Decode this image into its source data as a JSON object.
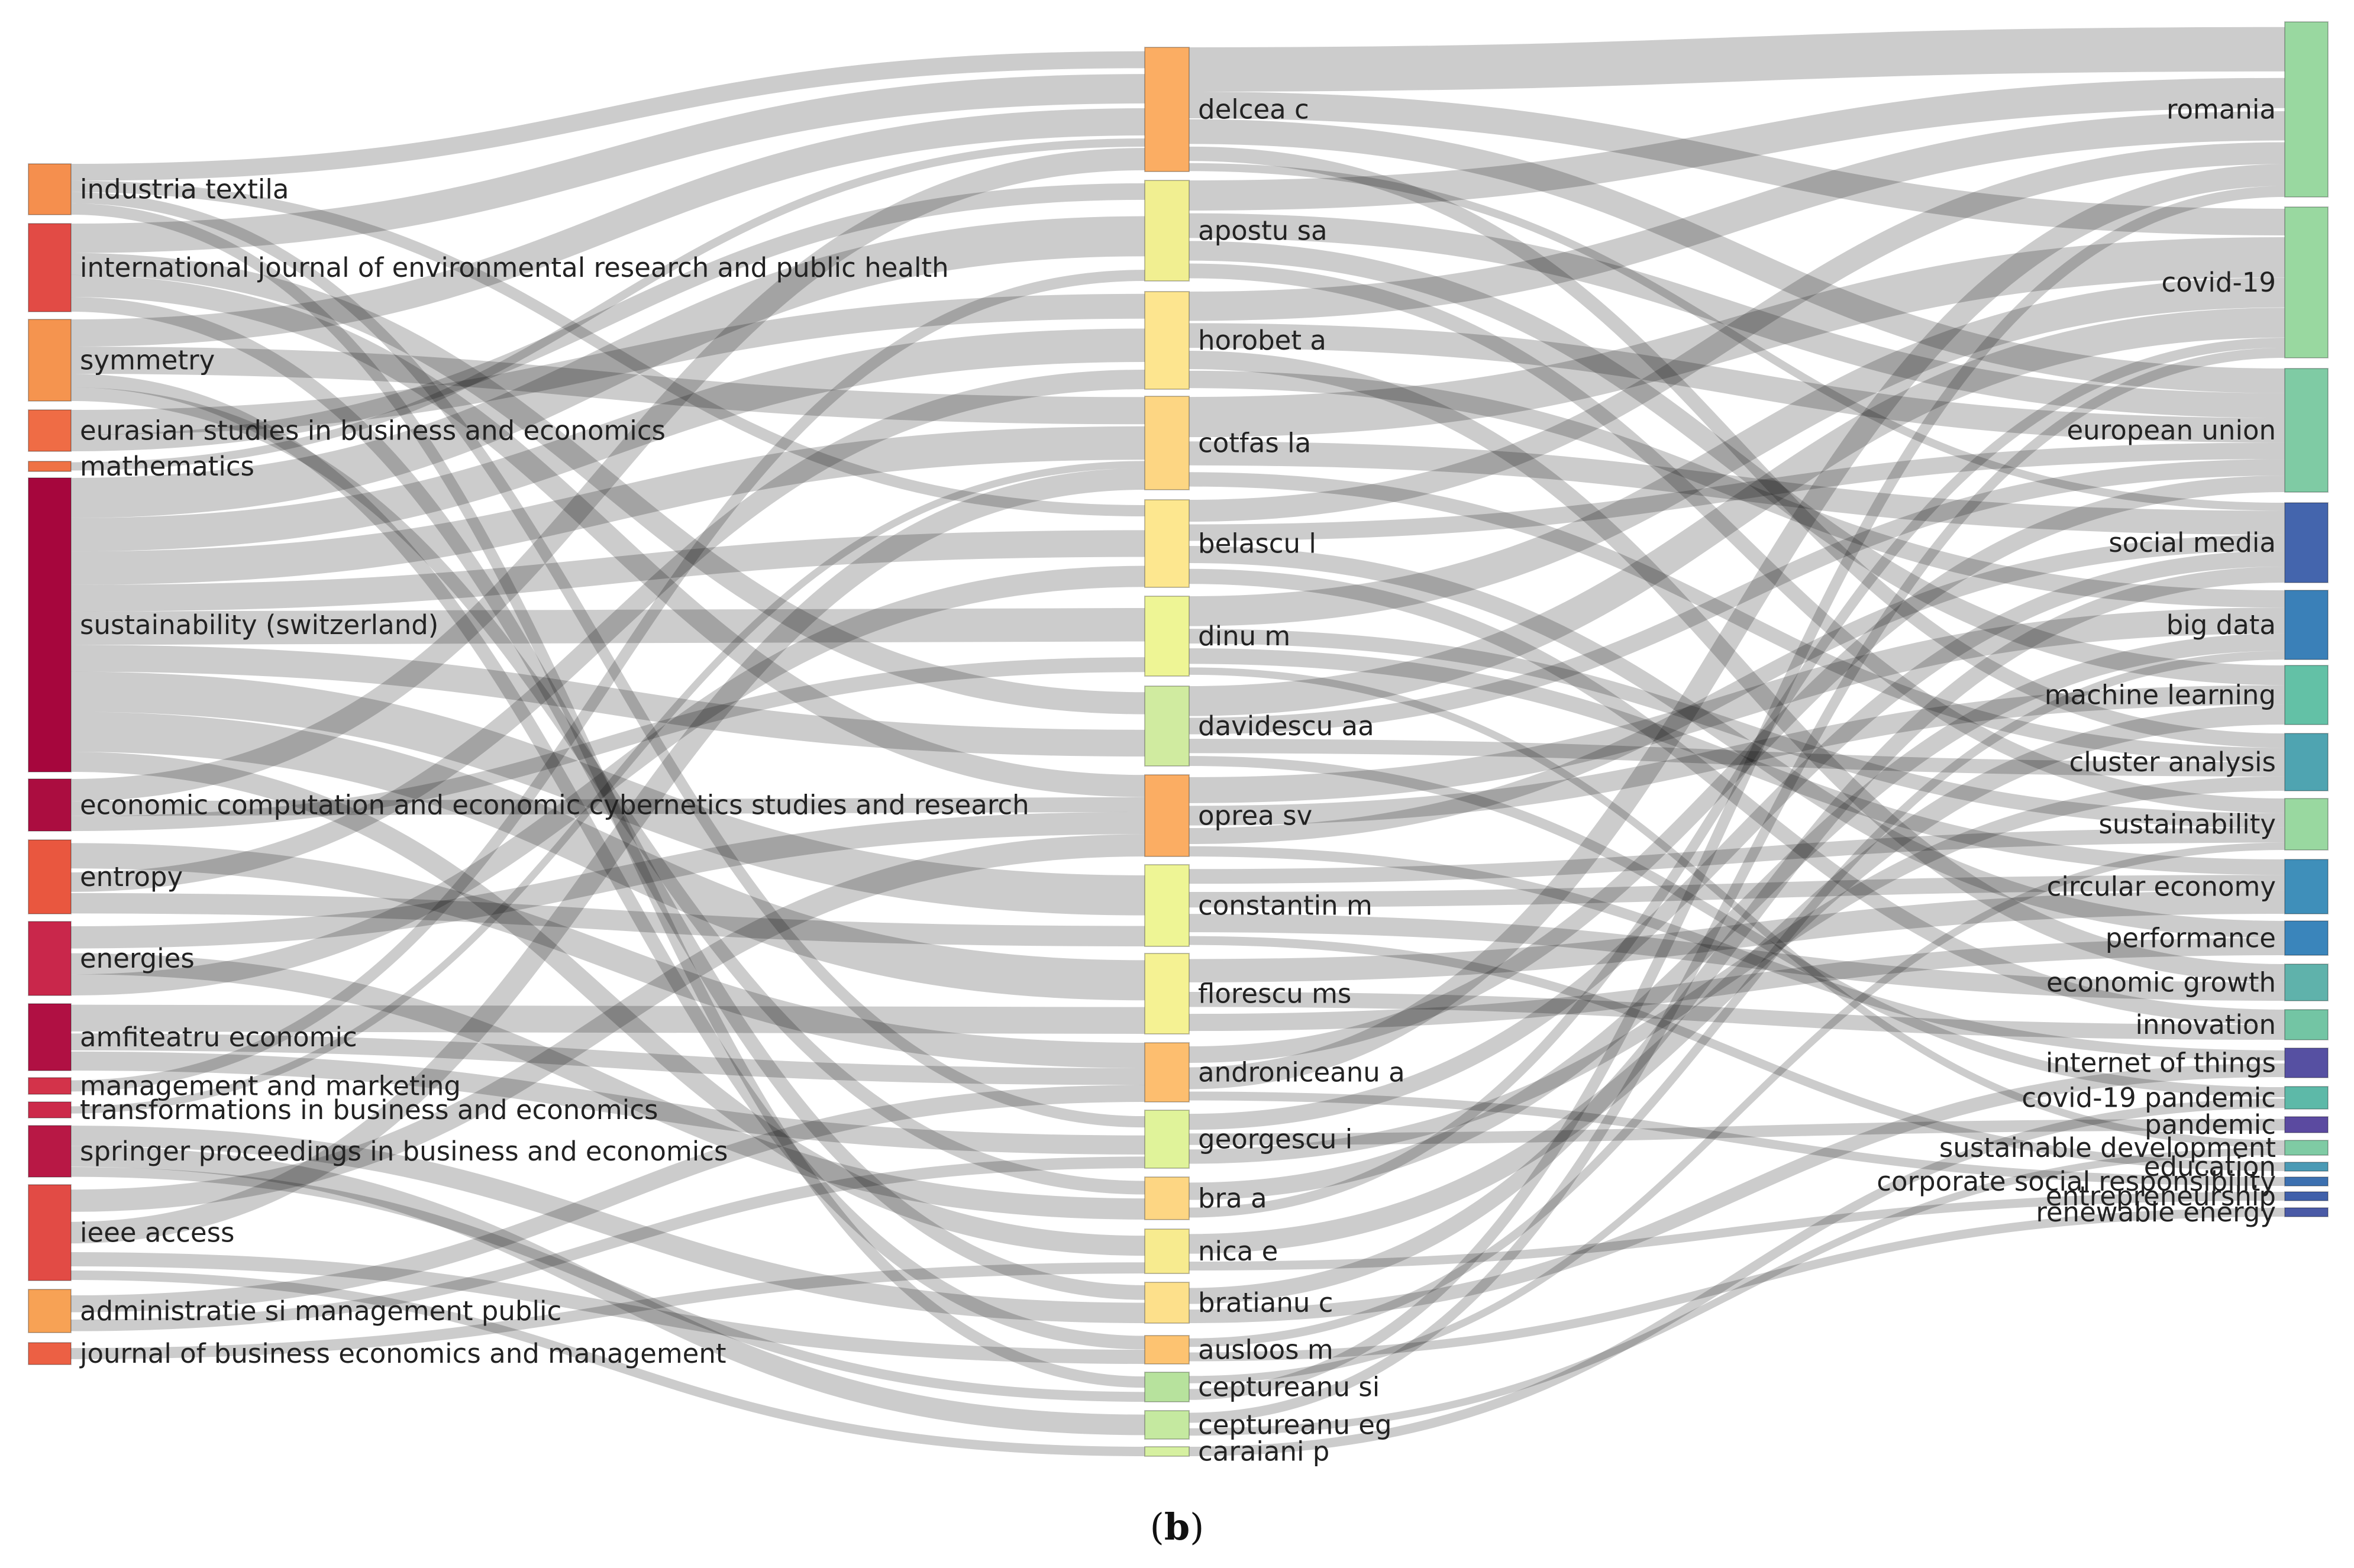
{
  "figure": {
    "panel_letter": "b"
  },
  "columns": {
    "sources": [
      {
        "label": "industria textila",
        "color": "#f58f4e"
      },
      {
        "label": "international journal of environmental research and public health",
        "color": "#e24b45"
      },
      {
        "label": "symmetry",
        "color": "#f5944f"
      },
      {
        "label": "eurasian studies in business and economics",
        "color": "#ef6c45"
      },
      {
        "label": "mathematics",
        "color": "#ef7245"
      },
      {
        "label": "sustainability (switzerland)",
        "color": "#a6063d"
      },
      {
        "label": "economic computation and economic cybernetics studies and research",
        "color": "#ab0d40"
      },
      {
        "label": "entropy",
        "color": "#e9573f"
      },
      {
        "label": "energies",
        "color": "#c9274b"
      },
      {
        "label": "amfiteatru economic",
        "color": "#b01043"
      },
      {
        "label": "management and marketing",
        "color": "#d3334a"
      },
      {
        "label": "transformations in business and economics",
        "color": "#cc2a4a"
      },
      {
        "label": "springer proceedings in business and economics",
        "color": "#b81845"
      },
      {
        "label": "ieee access",
        "color": "#e24b45"
      },
      {
        "label": "administratie si management public",
        "color": "#f7a255"
      },
      {
        "label": "journal of business economics and management",
        "color": "#ec6044"
      }
    ],
    "authors": [
      {
        "label": "delcea c",
        "color": "#fbad63"
      },
      {
        "label": "apostu sa",
        "color": "#f1ef91"
      },
      {
        "label": "horobet a",
        "color": "#fde58f"
      },
      {
        "label": "cotfas la",
        "color": "#fdd683"
      },
      {
        "label": "belascu l",
        "color": "#fde78f"
      },
      {
        "label": "dinu m",
        "color": "#eef595"
      },
      {
        "label": "davidescu aa",
        "color": "#d0eba0"
      },
      {
        "label": "oprea sv",
        "color": "#fbad63"
      },
      {
        "label": "constantin m",
        "color": "#eef595"
      },
      {
        "label": "florescu ms",
        "color": "#f5f293"
      },
      {
        "label": "androniceanu a",
        "color": "#fdbe6f"
      },
      {
        "label": "georgescu i",
        "color": "#e0f39a"
      },
      {
        "label": "bra a",
        "color": "#fdd683"
      },
      {
        "label": "nica e",
        "color": "#f7eb8f"
      },
      {
        "label": "bratianu c",
        "color": "#fde08b"
      },
      {
        "label": "ausloos m",
        "color": "#fdc371"
      },
      {
        "label": "ceptureanu si",
        "color": "#b7e29d"
      },
      {
        "label": "ceptureanu eg",
        "color": "#c5e9a0"
      },
      {
        "label": "caraiani p",
        "color": "#d6f0a0"
      }
    ],
    "keywords": [
      {
        "label": "romania",
        "color": "#99d8a0"
      },
      {
        "label": "covid-19",
        "color": "#99d8a0"
      },
      {
        "label": "european union",
        "color": "#7fcba4"
      },
      {
        "label": "social media",
        "color": "#4465ad"
      },
      {
        "label": "big data",
        "color": "#3a80b8"
      },
      {
        "label": "machine learning",
        "color": "#63c1a6"
      },
      {
        "label": "cluster analysis",
        "color": "#4fa4b1"
      },
      {
        "label": "sustainability",
        "color": "#99d8a0"
      },
      {
        "label": "circular economy",
        "color": "#3f8fba"
      },
      {
        "label": "performance",
        "color": "#3a85bb"
      },
      {
        "label": "economic growth",
        "color": "#5fb2ab"
      },
      {
        "label": "innovation",
        "color": "#73c5a4"
      },
      {
        "label": "internet of things",
        "color": "#5650a2"
      },
      {
        "label": "covid-19 pandemic",
        "color": "#5db9a8"
      },
      {
        "label": "pandemic",
        "color": "#5b4aa0"
      },
      {
        "label": "sustainable development",
        "color": "#7fcba4"
      },
      {
        "label": "education",
        "color": "#4a9ab5"
      },
      {
        "label": "corporate social responsibility",
        "color": "#3c70b0"
      },
      {
        "label": "entrepreneurship",
        "color": "#4060aa"
      },
      {
        "label": "renewable energy",
        "color": "#4a5aa6"
      }
    ]
  },
  "links_left": [
    [
      0,
      0,
      3
    ],
    [
      0,
      4,
      2
    ],
    [
      0,
      11,
      2
    ],
    [
      0,
      16,
      2
    ],
    [
      1,
      0,
      4
    ],
    [
      1,
      6,
      3
    ],
    [
      1,
      7,
      3
    ],
    [
      1,
      14,
      2
    ],
    [
      2,
      0,
      4
    ],
    [
      2,
      3,
      4
    ],
    [
      2,
      15,
      2
    ],
    [
      2,
      12,
      2
    ],
    [
      3,
      2,
      3
    ],
    [
      3,
      1,
      2
    ],
    [
      4,
      0,
      1
    ],
    [
      5,
      1,
      6
    ],
    [
      5,
      2,
      5
    ],
    [
      5,
      3,
      5
    ],
    [
      5,
      4,
      4
    ],
    [
      5,
      5,
      5
    ],
    [
      5,
      6,
      4
    ],
    [
      5,
      8,
      6
    ],
    [
      5,
      9,
      6
    ],
    [
      5,
      13,
      3
    ],
    [
      6,
      0,
      3
    ],
    [
      6,
      7,
      2
    ],
    [
      6,
      5,
      2
    ],
    [
      7,
      10,
      3
    ],
    [
      7,
      2,
      2
    ],
    [
      7,
      8,
      2
    ],
    [
      8,
      7,
      3
    ],
    [
      8,
      12,
      2
    ],
    [
      8,
      4,
      2
    ],
    [
      9,
      9,
      3
    ],
    [
      9,
      10,
      2
    ],
    [
      9,
      11,
      2
    ],
    [
      10,
      1,
      1
    ],
    [
      11,
      3,
      1
    ],
    [
      12,
      14,
      2
    ],
    [
      12,
      17,
      2
    ],
    [
      12,
      16,
      1
    ],
    [
      13,
      7,
      3
    ],
    [
      13,
      3,
      3
    ],
    [
      13,
      15,
      2
    ],
    [
      13,
      18,
      1
    ],
    [
      14,
      10,
      2
    ],
    [
      14,
      11,
      1
    ],
    [
      15,
      13,
      1
    ]
  ],
  "links_right": [
    [
      0,
      0,
      5
    ],
    [
      0,
      1,
      3
    ],
    [
      0,
      2,
      3
    ],
    [
      0,
      6,
      2
    ],
    [
      0,
      3,
      1
    ],
    [
      1,
      0,
      3
    ],
    [
      1,
      2,
      3
    ],
    [
      1,
      5,
      2
    ],
    [
      1,
      7,
      2
    ],
    [
      2,
      0,
      3
    ],
    [
      2,
      2,
      3
    ],
    [
      2,
      10,
      2
    ],
    [
      2,
      4,
      2
    ],
    [
      3,
      1,
      4
    ],
    [
      3,
      3,
      3
    ],
    [
      3,
      6,
      2
    ],
    [
      4,
      0,
      2
    ],
    [
      4,
      2,
      2
    ],
    [
      4,
      9,
      2
    ],
    [
      4,
      11,
      2
    ],
    [
      5,
      1,
      3
    ],
    [
      5,
      7,
      2
    ],
    [
      5,
      8,
      2
    ],
    [
      5,
      15,
      1
    ],
    [
      6,
      1,
      3
    ],
    [
      6,
      2,
      2
    ],
    [
      6,
      6,
      2
    ],
    [
      6,
      13,
      1
    ],
    [
      7,
      4,
      3
    ],
    [
      7,
      5,
      2
    ],
    [
      7,
      3,
      2
    ],
    [
      7,
      12,
      1
    ],
    [
      8,
      7,
      2
    ],
    [
      8,
      8,
      2
    ],
    [
      8,
      10,
      2
    ],
    [
      8,
      16,
      1
    ],
    [
      9,
      8,
      3
    ],
    [
      9,
      11,
      2
    ],
    [
      9,
      9,
      2
    ],
    [
      10,
      2,
      2
    ],
    [
      10,
      0,
      2
    ],
    [
      10,
      17,
      1
    ],
    [
      11,
      3,
      2
    ],
    [
      11,
      14,
      1
    ],
    [
      11,
      6,
      2
    ],
    [
      12,
      4,
      2
    ],
    [
      12,
      1,
      1
    ],
    [
      13,
      5,
      2
    ],
    [
      13,
      18,
      1
    ],
    [
      14,
      3,
      2
    ],
    [
      14,
      12,
      1
    ],
    [
      15,
      4,
      1
    ],
    [
      15,
      19,
      1
    ],
    [
      16,
      7,
      1
    ],
    [
      16,
      0,
      1
    ],
    [
      17,
      1,
      1
    ],
    [
      17,
      15,
      1
    ],
    [
      18,
      13,
      1
    ]
  ]
}
